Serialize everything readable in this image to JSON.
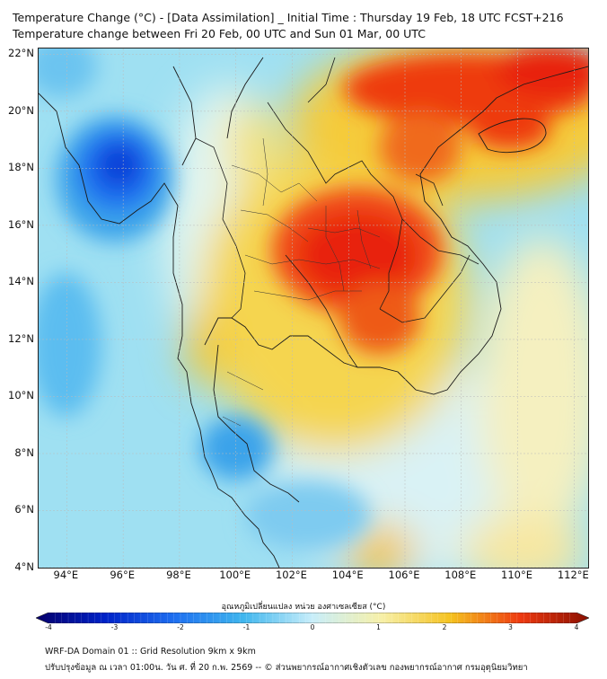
{
  "header": {
    "title_line1": "Temperature Change (°C) - [Data Assimilation] _ Initial Time : Thursday 19 Feb, 18 UTC FCST+216",
    "title_line2": "Temperature change between Fri 20 Feb, 00 UTC and Sun 01 Mar, 00 UTC"
  },
  "map": {
    "lat_labels": [
      "22°N",
      "20°N",
      "18°N",
      "16°N",
      "14°N",
      "12°N",
      "10°N",
      "8°N",
      "6°N",
      "4°N"
    ],
    "lon_labels": [
      "94°E",
      "96°E",
      "98°E",
      "100°E",
      "102°E",
      "104°E",
      "106°E",
      "108°E",
      "110°E",
      "112°E"
    ],
    "extent": {
      "lon_min": 93,
      "lon_max": 112.5,
      "lat_min": 4,
      "lat_max": 22.2
    },
    "warm_anomalies": [
      {
        "region": "Northeast Thailand / Laos",
        "lon": 103.5,
        "lat": 16.2,
        "value": 3.0
      },
      {
        "region": "Northern Vietnam / South China",
        "lon": 108.5,
        "lat": 21.5,
        "value": 3.0
      },
      {
        "region": "Hainan",
        "lon": 109.8,
        "lat": 19.2,
        "value": 3.0
      },
      {
        "region": "Cambodia",
        "lon": 105.5,
        "lat": 13.3,
        "value": 2.5
      }
    ],
    "cold_anomalies": [
      {
        "region": "Andaman Sea north",
        "lon": 95.8,
        "lat": 17.5,
        "value": -2.5
      },
      {
        "region": "Gulf of Thailand south",
        "lon": 100.0,
        "lat": 8.1,
        "value": -1.5
      }
    ]
  },
  "colorbar": {
    "title": "อุณหภูมิเปลี่ยนแปลง หน่วย องศาเซลเซียส (°C)",
    "min": -4,
    "max": 4,
    "ticks": [
      "-4",
      "-3",
      "-2",
      "-1",
      "0",
      "1",
      "2",
      "3",
      "4"
    ],
    "colors": [
      "#06006b",
      "#0022c8",
      "#1e6ff0",
      "#3fb6ee",
      "#c8eefa",
      "#f7f0a8",
      "#f5c21f",
      "#ee3a10",
      "#8a0f00"
    ]
  },
  "footer": {
    "line1": "WRF-DA Domain 01 :: Grid Resolution 9km x 9km",
    "line2": "ปรับปรุงข้อมูล ณ เวลา 01:00น. วัน ศ. ที่ 20 ก.พ. 2569 -- © ส่วนพยากรณ์อากาศเชิงตัวเลข กองพยากรณ์อากาศ กรมอุตุนิยมวิทยา"
  }
}
